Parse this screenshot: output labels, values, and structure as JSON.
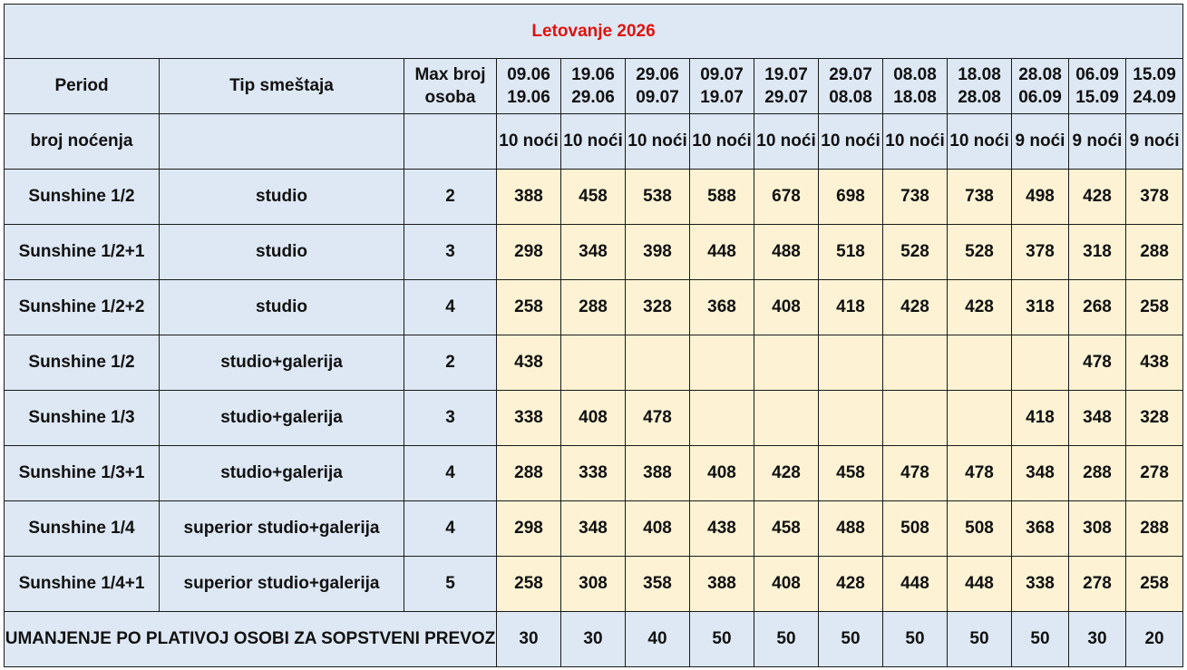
{
  "title": "Letovanje 2026",
  "headers": {
    "period": "Period",
    "tip": "Tip smeštaja",
    "max_line1": "Max broj",
    "max_line2": "osoba"
  },
  "periods": [
    {
      "from": "09.06",
      "to": "19.06",
      "nights": "10 noći"
    },
    {
      "from": "19.06",
      "to": "29.06",
      "nights": "10 noći"
    },
    {
      "from": "29.06",
      "to": "09.07",
      "nights": "10 noći"
    },
    {
      "from": "09.07",
      "to": "19.07",
      "nights": "10 noći"
    },
    {
      "from": "19.07",
      "to": "29.07",
      "nights": "10 noći"
    },
    {
      "from": "29.07",
      "to": "08.08",
      "nights": "10 noći"
    },
    {
      "from": "08.08",
      "to": "18.08",
      "nights": "10 noći"
    },
    {
      "from": "18.08",
      "to": "28.08",
      "nights": "10 noći"
    },
    {
      "from": "28.08",
      "to": "06.09",
      "nights": "9 noći"
    },
    {
      "from": "06.09",
      "to": "15.09",
      "nights": "9 noći"
    },
    {
      "from": "15.09",
      "to": "24.09",
      "nights": "9 noći"
    }
  ],
  "nights_label": "broj noćenja",
  "rows": [
    {
      "name": "Sunshine 1/2",
      "type": "studio",
      "max": "2",
      "prices": [
        "388",
        "458",
        "538",
        "588",
        "678",
        "698",
        "738",
        "738",
        "498",
        "428",
        "378"
      ]
    },
    {
      "name": "Sunshine 1/2+1",
      "type": "studio",
      "max": "3",
      "prices": [
        "298",
        "348",
        "398",
        "448",
        "488",
        "518",
        "528",
        "528",
        "378",
        "318",
        "288"
      ]
    },
    {
      "name": "Sunshine 1/2+2",
      "type": "studio",
      "max": "4",
      "prices": [
        "258",
        "288",
        "328",
        "368",
        "408",
        "418",
        "428",
        "428",
        "318",
        "268",
        "258"
      ]
    },
    {
      "name": "Sunshine 1/2",
      "type": "studio+galerija",
      "max": "2",
      "prices": [
        "438",
        "",
        "",
        "",
        "",
        "",
        "",
        "",
        "",
        "478",
        "438"
      ]
    },
    {
      "name": "Sunshine 1/3",
      "type": "studio+galerija",
      "max": "3",
      "prices": [
        "338",
        "408",
        "478",
        "",
        "",
        "",
        "",
        "",
        "418",
        "348",
        "328"
      ]
    },
    {
      "name": "Sunshine 1/3+1",
      "type": "studio+galerija",
      "max": "4",
      "prices": [
        "288",
        "338",
        "388",
        "408",
        "428",
        "458",
        "478",
        "478",
        "348",
        "288",
        "278"
      ]
    },
    {
      "name": "Sunshine 1/4",
      "type": "superior studio+galerija",
      "max": "4",
      "prices": [
        "298",
        "348",
        "408",
        "438",
        "458",
        "488",
        "508",
        "508",
        "368",
        "308",
        "288"
      ]
    },
    {
      "name": "Sunshine 1/4+1",
      "type": "superior studio+galerija",
      "max": "5",
      "prices": [
        "258",
        "308",
        "358",
        "388",
        "408",
        "428",
        "448",
        "448",
        "338",
        "278",
        "258"
      ]
    }
  ],
  "discount": {
    "label": "UMANJENJE PO PLATIVOJ OSOBI ZA SOPSTVENI PREVOZ",
    "values": [
      "30",
      "30",
      "40",
      "50",
      "50",
      "50",
      "50",
      "50",
      "50",
      "30",
      "20"
    ]
  },
  "colors": {
    "title": "#e0120c",
    "header_bg": "#dde8f4",
    "price_bg": "#fdf3d4",
    "border": "#1a1a1a"
  }
}
